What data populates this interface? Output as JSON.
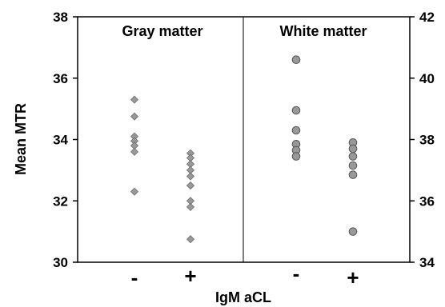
{
  "chart_data": {
    "type": "scatter",
    "xlabel": "IgM aCL",
    "ylabel": "Mean MTR",
    "categories": [
      "-",
      "+"
    ],
    "y_left": {
      "range": [
        30,
        38
      ],
      "ticks": [
        "30",
        "32",
        "34",
        "36",
        "38"
      ]
    },
    "y_right": {
      "range": [
        34,
        42
      ],
      "ticks": [
        "34",
        "36",
        "38",
        "40",
        "42"
      ]
    },
    "grid": false,
    "legend": "none",
    "panels": [
      {
        "title": "Gray matter",
        "axis": "left",
        "marker": "diamond",
        "color": "#999999",
        "points": [
          {
            "category": "-",
            "values": [
              35.3,
              34.75,
              34.1,
              33.95,
              33.8,
              33.6,
              32.3
            ]
          },
          {
            "category": "+",
            "values": [
              33.55,
              33.4,
              33.2,
              33.0,
              32.8,
              32.5,
              32.0,
              31.8,
              30.75
            ]
          }
        ]
      },
      {
        "title": "White matter",
        "axis": "right",
        "marker": "circle",
        "color": "#999999",
        "points": [
          {
            "category": "-",
            "values": [
              40.6,
              38.95,
              38.3,
              37.85,
              37.65,
              37.45
            ]
          },
          {
            "category": "+",
            "values": [
              37.9,
              37.7,
              37.45,
              37.15,
              36.85,
              35.0
            ]
          }
        ]
      }
    ]
  }
}
